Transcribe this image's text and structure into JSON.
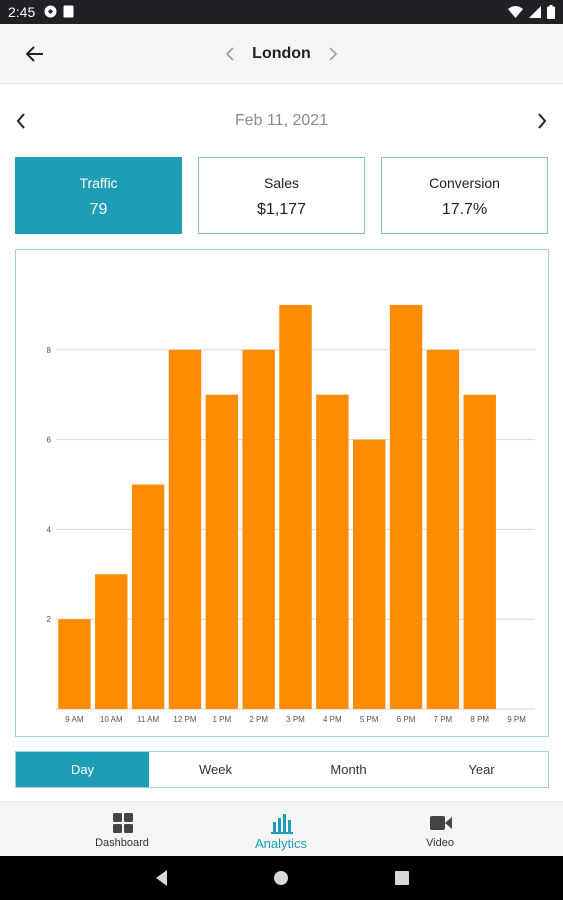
{
  "status_bar": {
    "time": "2:45"
  },
  "header": {
    "location": "London"
  },
  "date_nav": {
    "date": "Feb 11, 2021"
  },
  "metrics": [
    {
      "label": "Traffic",
      "value": "79"
    },
    {
      "label": "Sales",
      "value": "$1,177"
    },
    {
      "label": "Conversion",
      "value": "17.7%"
    }
  ],
  "period_tabs": [
    "Day",
    "Week",
    "Month",
    "Year"
  ],
  "bottom_nav": [
    {
      "label": "Dashboard",
      "icon": "grid-icon"
    },
    {
      "label": "Analytics",
      "icon": "bar-chart-icon"
    },
    {
      "label": "Video",
      "icon": "video-camera-icon"
    }
  ],
  "colors": {
    "accent": "#1e9db4",
    "bar": "#ff8c00"
  },
  "chart_data": {
    "type": "bar",
    "categories": [
      "9 AM",
      "10 AM",
      "11 AM",
      "12 PM",
      "1 PM",
      "2 PM",
      "3 PM",
      "4 PM",
      "5 PM",
      "6 PM",
      "7 PM",
      "8 PM",
      "9 PM"
    ],
    "values": [
      2,
      3,
      5,
      8,
      7,
      8,
      9,
      7,
      6,
      9,
      8,
      7,
      0
    ],
    "yticks": [
      2,
      4,
      6,
      8
    ],
    "ylim": [
      0,
      10
    ],
    "grid": true,
    "legend": "none"
  }
}
